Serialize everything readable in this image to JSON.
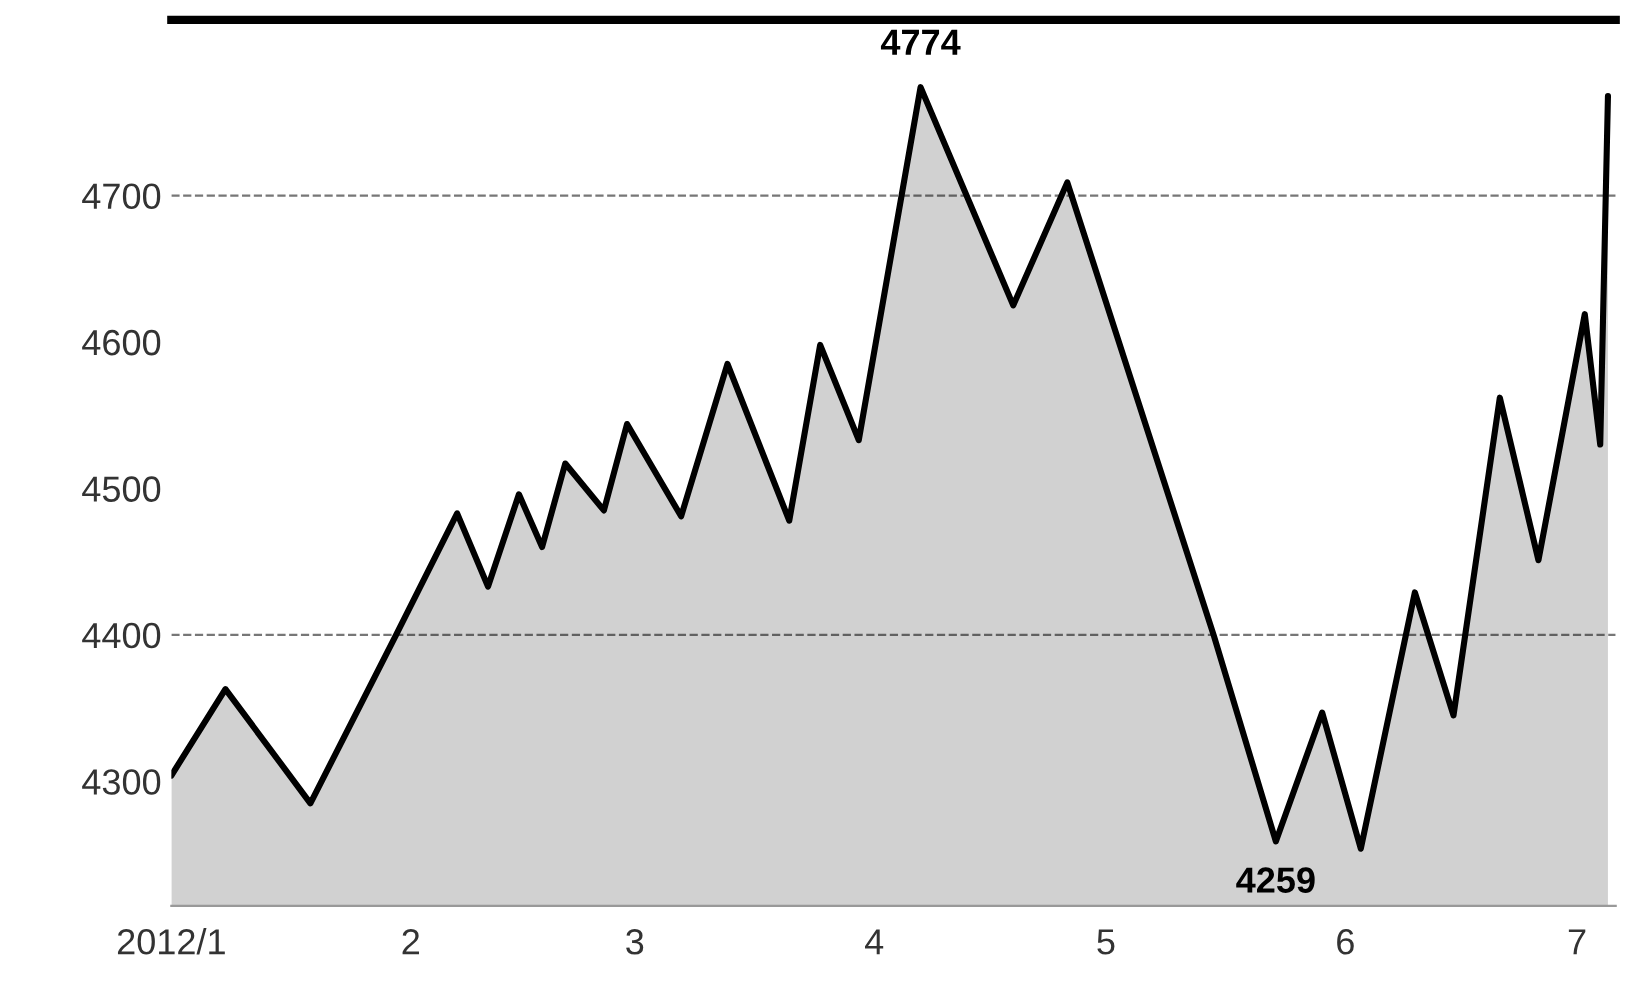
{
  "chart_data": {
    "type": "area",
    "x": [
      "2012-01-01",
      "2012-01-08",
      "2012-01-19",
      "2012-01-30",
      "2012-02-07",
      "2012-02-11",
      "2012-02-15",
      "2012-02-18",
      "2012-02-21",
      "2012-02-26",
      "2012-02-29",
      "2012-03-07",
      "2012-03-13",
      "2012-03-21",
      "2012-03-25",
      "2012-03-30",
      "2012-04-07",
      "2012-04-19",
      "2012-04-26",
      "2012-05-15",
      "2012-05-23",
      "2012-05-29",
      "2012-06-03",
      "2012-06-10",
      "2012-06-15",
      "2012-06-21",
      "2012-06-26",
      "2012-07-02",
      "2012-07-04",
      "2012-07-05"
    ],
    "series": [
      {
        "color": "#000000",
        "values": [
          4304,
          4363,
          4285,
          4399,
          4483,
          4433,
          4496,
          4460,
          4517,
          4485,
          4544,
          4481,
          4585,
          4478,
          4598,
          4533,
          4774,
          4625,
          4709,
          4399,
          4259,
          4347,
          4254,
          4429,
          4345,
          4562,
          4451,
          4619,
          4530,
          4768
        ]
      }
    ],
    "xlim": [
      "2012-01-01",
      "2012-07-06"
    ],
    "xticks": [
      {
        "value": "2012-01-01",
        "label": "2012/1"
      },
      {
        "value": "2012-02-01",
        "label": "2"
      },
      {
        "value": "2012-03-01",
        "label": "3"
      },
      {
        "value": "2012-04-01",
        "label": "4"
      },
      {
        "value": "2012-05-01",
        "label": "5"
      },
      {
        "value": "2012-06-01",
        "label": "6"
      },
      {
        "value": "2012-07-01",
        "label": "7"
      }
    ],
    "ylim": [
      4215,
      4820
    ],
    "yticks": [
      4300,
      4400,
      4500,
      4600,
      4700
    ],
    "ref_lines": [
      {
        "axis": "y",
        "value": 4700,
        "line_style": "dashed",
        "color": "#777777"
      },
      {
        "axis": "y",
        "value": 4400,
        "line_style": "dashed",
        "color": "#777777"
      }
    ],
    "annotations": [
      {
        "text": "4774",
        "x": "2012-04-07",
        "y": 4774
      },
      {
        "text": "4259",
        "x": "2012-05-23",
        "y": 4259
      }
    ]
  }
}
